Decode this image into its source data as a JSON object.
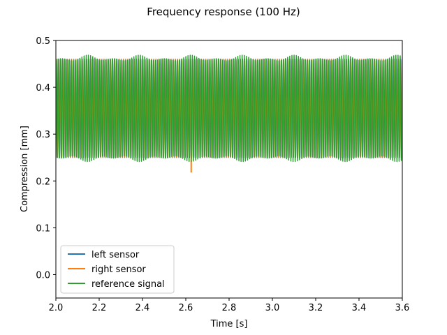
{
  "chart_data": {
    "type": "line",
    "title": "Frequency response (100 Hz)",
    "xlabel": "Time [s]",
    "ylabel": "Compression [mm]",
    "xlim": [
      2.0,
      3.6
    ],
    "ylim": [
      -0.05,
      0.5
    ],
    "xticks": [
      2.0,
      2.2,
      2.4,
      2.6,
      2.8,
      3.0,
      3.2,
      3.4,
      3.6
    ],
    "xtick_labels": [
      "2.0",
      "2.2",
      "2.4",
      "2.6",
      "2.8",
      "3.0",
      "3.2",
      "3.4",
      "3.6"
    ],
    "yticks": [
      0.0,
      0.1,
      0.2,
      0.3,
      0.4,
      0.5
    ],
    "ytick_labels": [
      "0.0",
      "0.1",
      "0.2",
      "0.3",
      "0.4",
      "0.5"
    ],
    "grid": false,
    "legend_position": "lower-left",
    "series": [
      {
        "name": "left sensor",
        "color": "#1f77b4",
        "signal": {
          "kind": "sinusoid",
          "frequency_hz": 100,
          "center": 0.355,
          "amplitude": 0.105
        },
        "visible_segment": null
      },
      {
        "name": "right sensor",
        "color": "#ff7f0e",
        "signal": {
          "kind": "sinusoid",
          "frequency_hz": 100,
          "center": 0.355,
          "amplitude": 0.105
        },
        "spike": {
          "x": 2.625,
          "y": 0.218
        }
      },
      {
        "name": "reference signal",
        "color": "#2ca02c",
        "signal": {
          "kind": "sinusoid",
          "frequency_hz": 100,
          "center": 0.355,
          "amplitude_min": 0.1,
          "amplitude_max": 0.115
        }
      }
    ]
  }
}
